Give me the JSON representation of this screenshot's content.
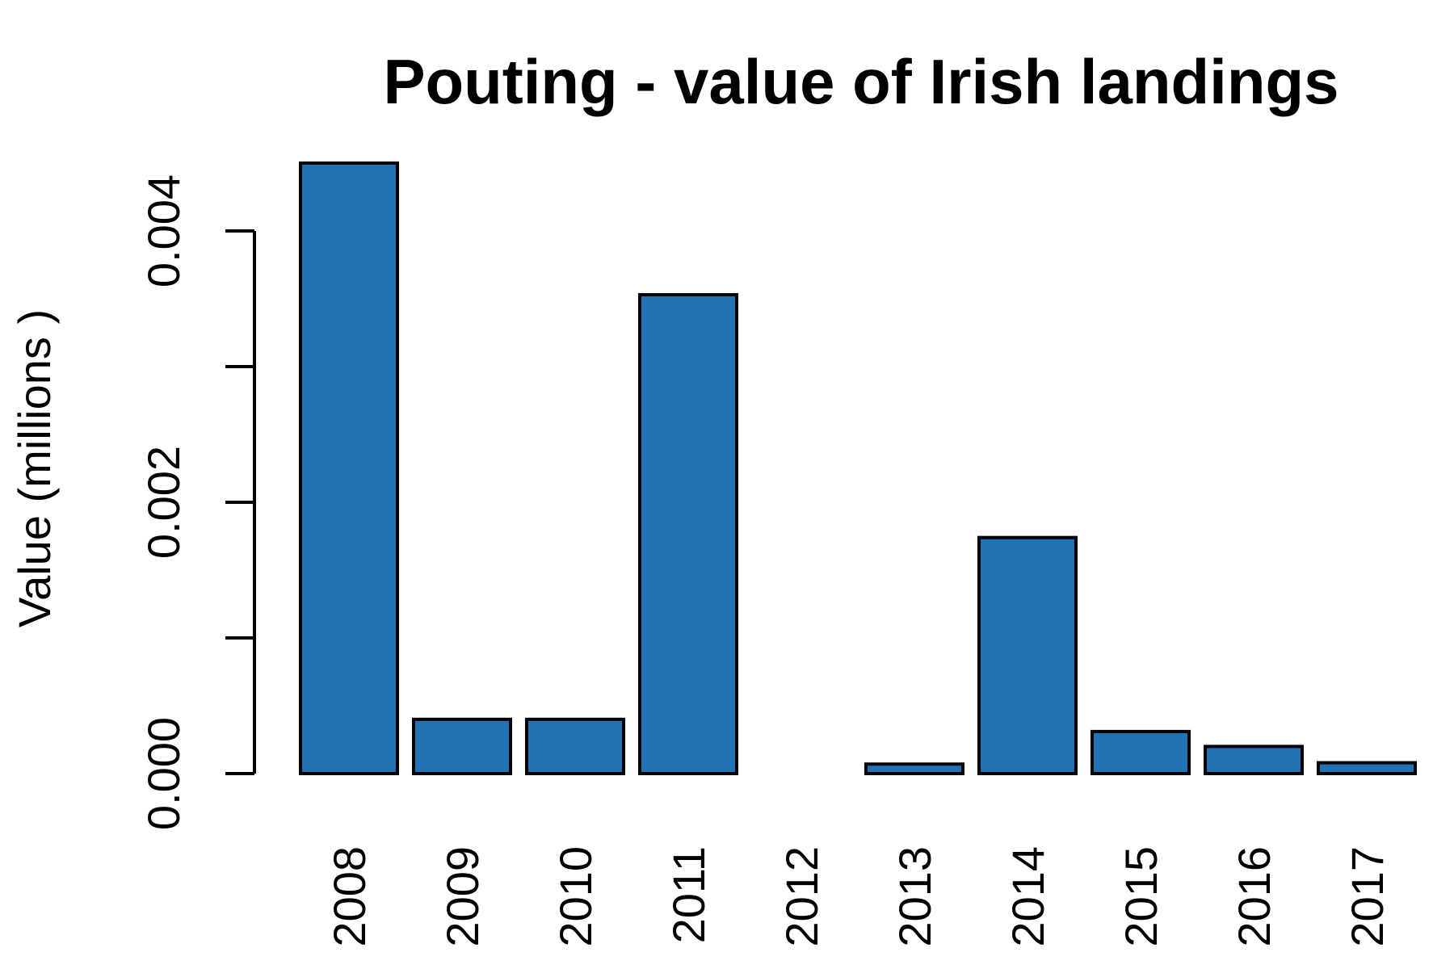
{
  "chart_data": {
    "type": "bar",
    "title": "Pouting - value of Irish landings",
    "xlabel": "",
    "ylabel": "Value (millions )",
    "categories": [
      "2008",
      "2009",
      "2010",
      "2011",
      "2012",
      "2013",
      "2014",
      "2015",
      "2016",
      "2017"
    ],
    "values": [
      0.0045,
      0.0004,
      0.0004,
      0.00353,
      0.0,
      7e-05,
      0.00174,
      0.00031,
      0.0002,
      8e-05
    ],
    "ylim": [
      0,
      0.0045
    ],
    "yticks": [
      0.0,
      0.001,
      0.002,
      0.003,
      0.004
    ],
    "ytick_labels": [
      "0.000",
      "",
      "0.002",
      "",
      "0.004"
    ],
    "bar_color": "#2372b4",
    "grid": false,
    "legend": "none"
  }
}
